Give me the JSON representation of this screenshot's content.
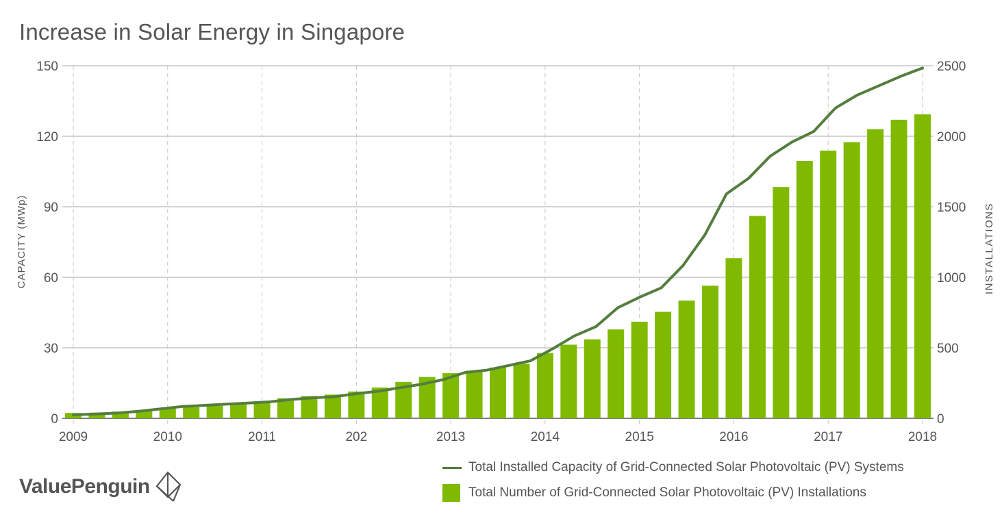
{
  "chart_data": {
    "type": "bar+line",
    "title": "Increase in Solar Energy in Singapore",
    "ylabel_left": "CAPACITY (MWp)",
    "ylabel_right": "INSTALLATIONS",
    "ylim_left": [
      0,
      150
    ],
    "ylim_right": [
      0,
      2500
    ],
    "yticks_left": [
      0,
      30,
      60,
      90,
      120,
      150
    ],
    "yticks_right": [
      0,
      500,
      1000,
      1500,
      2000,
      2500
    ],
    "xtick_labels": [
      "2009",
      "2010",
      "2011",
      "202",
      "2013",
      "2014",
      "2015",
      "2016",
      "2017",
      "2018"
    ],
    "grid": true,
    "legend_position": "bottom-right",
    "series": [
      {
        "name": "Total Installed Capacity of Grid-Connected Solar Photovoltaic (PV) Systems",
        "type": "line",
        "axis": "left",
        "color": "#547d3e",
        "values": [
          1.5,
          1.8,
          2.2,
          3.0,
          4.0,
          5.0,
          5.5,
          6.0,
          6.5,
          7.0,
          8.0,
          8.7,
          9.2,
          10.5,
          11.5,
          13.0,
          14.5,
          16.5,
          19.5,
          20.5,
          22.5,
          24.5,
          29.5,
          35.0,
          39.0,
          47.0,
          51.5,
          55.5,
          65.0,
          78.0,
          95.5,
          102.0,
          111.5,
          117.5,
          122.0,
          132.0,
          137.5,
          141.5,
          145.5,
          149.0
        ]
      },
      {
        "name": "Total Number of Grid-Connected Solar Photovoltaic (PV) Installations",
        "type": "bar",
        "axis": "right",
        "color": "#7fba00",
        "values": [
          38,
          40,
          48,
          58,
          70,
          78,
          88,
          102,
          120,
          142,
          158,
          168,
          190,
          218,
          258,
          293,
          320,
          338,
          360,
          387,
          463,
          522,
          560,
          630,
          685,
          755,
          835,
          940,
          1135,
          1435,
          1640,
          1825,
          1898,
          1958,
          2050,
          2117,
          2155
        ]
      }
    ]
  },
  "logo": {
    "text": "ValuePenguin"
  }
}
